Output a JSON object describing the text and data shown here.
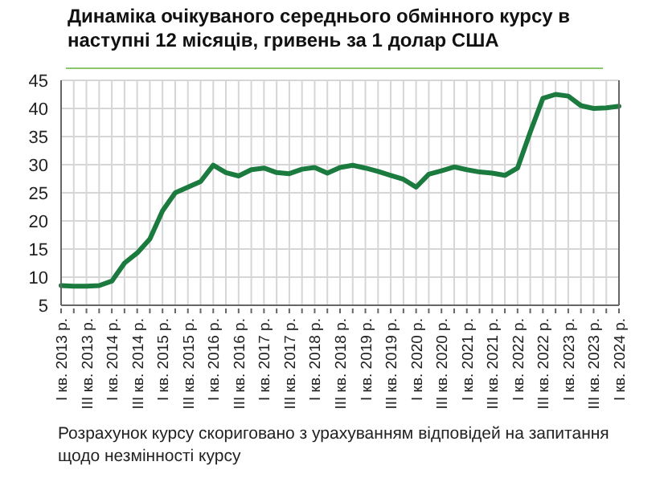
{
  "chart_data": {
    "type": "line",
    "title": "Динаміка очікуваного середнього обмінного курсу в наступні 12 місяців, гривень за 1 долар США",
    "categories": [
      "I кв. 2013 р.",
      null,
      "III кв. 2013 р.",
      null,
      "I кв. 2014 р.",
      null,
      "III кв. 2014 р.",
      null,
      "I кв. 2015 р.",
      null,
      "III кв. 2015 р.",
      null,
      "I кв. 2016 р.",
      null,
      "III кв. 2016 р.",
      null,
      "I кв. 2017 р.",
      null,
      "III кв. 2017 р.",
      null,
      "I кв. 2018 р.",
      null,
      "III кв. 2018 р.",
      null,
      "I кв. 2019 р.",
      null,
      "III кв. 2019 р.",
      null,
      "I кв. 2020 р.",
      null,
      "III кв. 2020 р.",
      null,
      "I кв. 2021 р.",
      null,
      "III кв. 2021 р.",
      null,
      "I кв. 2022 р.",
      null,
      "III кв. 2022 р.",
      null,
      "I кв. 2023 р.",
      null,
      "III кв. 2023 р.",
      null,
      "I кв. 2024 р."
    ],
    "series": [
      {
        "color": "#1b7a3e",
        "values": [
          8.5,
          8.4,
          8.4,
          8.5,
          9.3,
          12.5,
          14.3,
          16.8,
          21.8,
          25,
          26,
          27,
          29.9,
          28.6,
          28,
          29.1,
          29.4,
          28.6,
          28.4,
          29.2,
          29.5,
          28.5,
          29.5,
          29.9,
          29.4,
          28.8,
          28.1,
          27.4,
          26,
          28.3,
          28.9,
          29.6,
          29.1,
          28.7,
          28.5,
          28.1,
          29.4,
          35.8,
          41.8,
          42.5,
          42.2,
          40.5,
          40,
          40.1,
          40.4
        ]
      }
    ],
    "ylim": [
      5,
      45
    ],
    "yticks": [
      5,
      10,
      15,
      20,
      25,
      30,
      35,
      40,
      45
    ],
    "grid": true,
    "legend": false,
    "marker": "none",
    "line_style": "solid",
    "annotations": [
      "Розрахунок курсу скориговано з урахуванням відповідей на запитання щодо незмінності курсу"
    ]
  }
}
